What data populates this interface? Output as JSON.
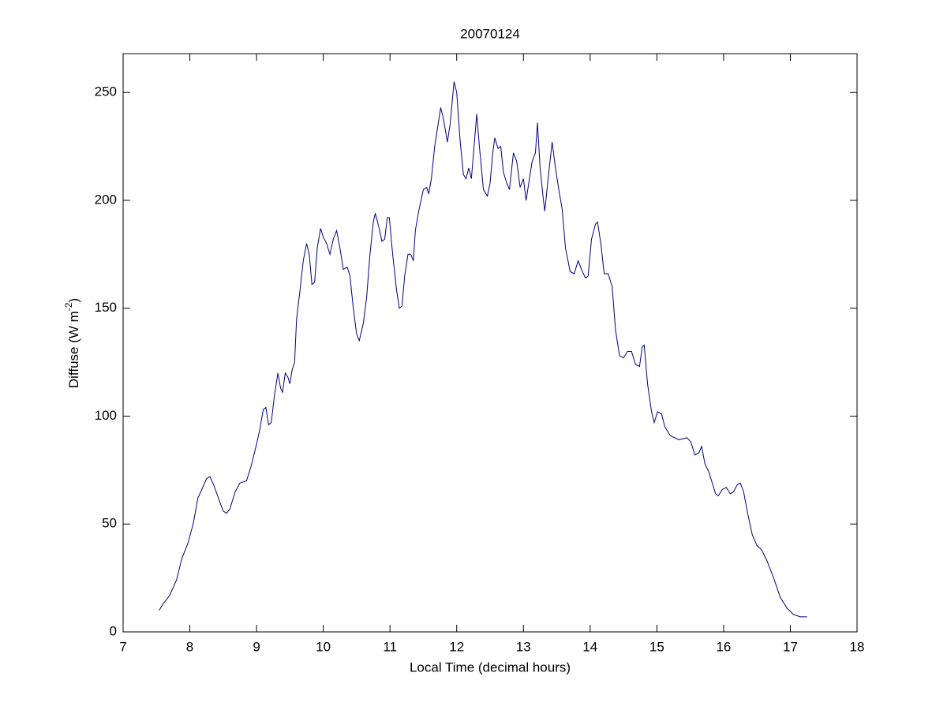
{
  "chart_data": {
    "type": "line",
    "title": "20070124",
    "xlabel": "Local Time (decimal hours)",
    "ylabel": [
      "Diffuse (W m",
      "-2",
      ")"
    ],
    "xlim": [
      7,
      18
    ],
    "xticks": [
      7,
      8,
      9,
      10,
      11,
      12,
      13,
      14,
      15,
      16,
      17,
      18
    ],
    "ylim": [
      0,
      268
    ],
    "yticks": [
      0,
      50,
      100,
      150,
      200,
      250
    ],
    "series": [
      {
        "color": "#000080",
        "x": [
          7.54,
          7.6,
          7.7,
          7.8,
          7.88,
          7.97,
          8.05,
          8.12,
          8.18,
          8.25,
          8.3,
          8.36,
          8.44,
          8.5,
          8.55,
          8.6,
          8.68,
          8.75,
          8.85,
          8.92,
          9.0,
          9.05,
          9.1,
          9.14,
          9.18,
          9.22,
          9.27,
          9.32,
          9.36,
          9.39,
          9.43,
          9.47,
          9.5,
          9.53,
          9.57,
          9.6,
          9.65,
          9.7,
          9.75,
          9.79,
          9.83,
          9.87,
          9.91,
          9.96,
          10.0,
          10.05,
          10.1,
          10.15,
          10.2,
          10.25,
          10.3,
          10.36,
          10.4,
          10.45,
          10.5,
          10.54,
          10.6,
          10.65,
          10.7,
          10.75,
          10.78,
          10.83,
          10.88,
          10.92,
          10.96,
          10.99,
          11.04,
          11.1,
          11.14,
          11.18,
          11.22,
          11.27,
          11.31,
          11.35,
          11.38,
          11.43,
          11.5,
          11.55,
          11.58,
          11.62,
          11.67,
          11.72,
          11.76,
          11.8,
          11.86,
          11.9,
          11.96,
          12.0,
          12.05,
          12.1,
          12.14,
          12.18,
          12.22,
          12.26,
          12.3,
          12.34,
          12.4,
          12.46,
          12.5,
          12.54,
          12.57,
          12.62,
          12.66,
          12.7,
          12.75,
          12.79,
          12.85,
          12.9,
          12.95,
          13.0,
          13.04,
          13.08,
          13.13,
          13.18,
          13.21,
          13.25,
          13.3,
          13.32,
          13.37,
          13.43,
          13.48,
          13.53,
          13.58,
          13.63,
          13.7,
          13.76,
          13.82,
          13.87,
          13.93,
          13.97,
          14.02,
          14.08,
          14.11,
          14.16,
          14.21,
          14.27,
          14.33,
          14.38,
          14.44,
          14.5,
          14.56,
          14.62,
          14.68,
          14.74,
          14.78,
          14.81,
          14.86,
          14.92,
          14.96,
          15.01,
          15.07,
          15.12,
          15.2,
          15.33,
          15.45,
          15.51,
          15.57,
          15.63,
          15.67,
          15.72,
          15.78,
          15.84,
          15.88,
          15.92,
          15.98,
          16.04,
          16.1,
          16.15,
          16.2,
          16.25,
          16.3,
          16.36,
          16.43,
          16.5,
          16.57,
          16.65,
          16.75,
          16.85,
          16.95,
          17.05,
          17.15,
          17.25
        ],
        "values": [
          10,
          13,
          17,
          24,
          34,
          41,
          50,
          62,
          66,
          71,
          72,
          68,
          61,
          56,
          55,
          57,
          65,
          69,
          70,
          77,
          87,
          94,
          103,
          104,
          96,
          97,
          110,
          120,
          113,
          111,
          120,
          118,
          115,
          121,
          125,
          145,
          158,
          172,
          180,
          175,
          161,
          162,
          178,
          187,
          183,
          180,
          175,
          182,
          186,
          178,
          168,
          169,
          165,
          150,
          138,
          135,
          143,
          155,
          175,
          190,
          194,
          188,
          181,
          182,
          192,
          192,
          175,
          158,
          150,
          151,
          165,
          175,
          175,
          172,
          186,
          195,
          205,
          206,
          203,
          210,
          225,
          235,
          243,
          238,
          227,
          235,
          255,
          250,
          228,
          212,
          210,
          215,
          210,
          225,
          240,
          225,
          205,
          202,
          208,
          222,
          229,
          224,
          225,
          213,
          208,
          205,
          222,
          218,
          206,
          210,
          200,
          208,
          218,
          222,
          236,
          215,
          200,
          195,
          210,
          227,
          215,
          205,
          196,
          178,
          167,
          166,
          172,
          168,
          164,
          165,
          182,
          189,
          190,
          180,
          166,
          166,
          160,
          140,
          128,
          127,
          130,
          130,
          124,
          123,
          132,
          133,
          115,
          102,
          97,
          102,
          101,
          95,
          91,
          89,
          90,
          88,
          82,
          83,
          86,
          78,
          74,
          68,
          64,
          63,
          66,
          67,
          64,
          65,
          68,
          69,
          65,
          55,
          45,
          40,
          38,
          33,
          25,
          16,
          11,
          8,
          7,
          7
        ]
      }
    ]
  }
}
